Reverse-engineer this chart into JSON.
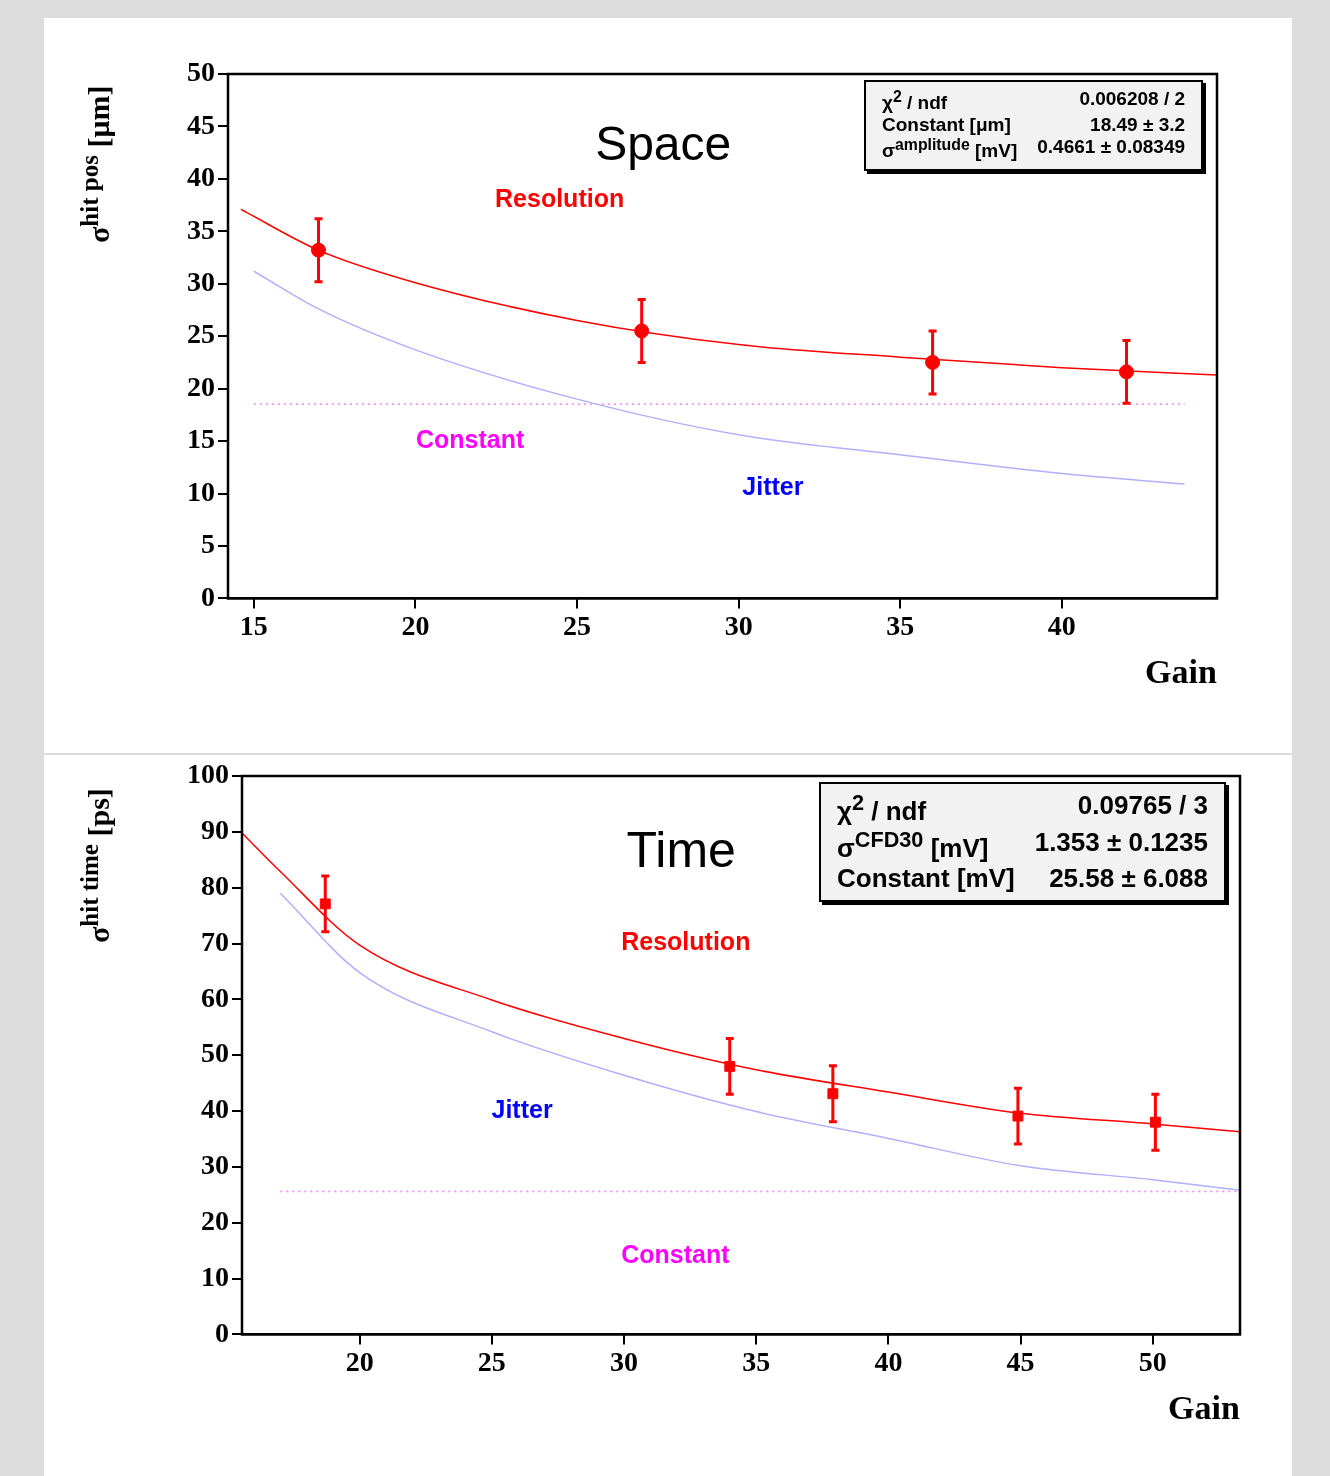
{
  "chart_data": [
    {
      "type": "scatter",
      "title": "Space",
      "xlabel": "Gain",
      "ylabel": "σ$^{hit pos}$ [μm]",
      "xlim": [
        14.2,
        44.8
      ],
      "xticks": [
        15,
        20,
        25,
        30,
        35,
        40
      ],
      "ylim": [
        0,
        50
      ],
      "yticks": [
        0,
        5,
        10,
        15,
        20,
        25,
        30,
        35,
        40,
        45,
        50
      ],
      "grid": false,
      "legend": false,
      "annotations": [
        "χ$^{2}$ / ndf",
        "0.006208 / 2",
        "Constant [μm]",
        "18.49 ±  3.2",
        "σ$^{amplitude}$ [mV]",
        "0.4661 ± 0.08349"
      ],
      "series": [
        {
          "type": "scatter",
          "color": "#ff0000",
          "marker": "circle",
          "x": [
            17,
            27,
            36,
            42
          ],
          "values": [
            33.2,
            25.5,
            22.5,
            21.6
          ],
          "errors": [
            3,
            3,
            3,
            3
          ]
        },
        {
          "type": "line",
          "name": "Resolution",
          "color": "#ff0000",
          "marker": "none",
          "x": [
            14.6,
            17,
            20,
            25,
            30,
            35,
            40,
            44.8
          ],
          "values": [
            37.1,
            33.2,
            30.1,
            26.5,
            24.2,
            23.0,
            22.0,
            21.3
          ]
        },
        {
          "type": "line",
          "name": "Jitter",
          "color": "#b0b0ff",
          "marker": "none",
          "x": [
            15,
            17,
            20,
            25,
            30,
            35,
            40,
            43.8
          ],
          "values": [
            31.2,
            27.6,
            23.7,
            19.0,
            15.6,
            13.7,
            11.9,
            10.9
          ]
        },
        {
          "type": "line",
          "name": "Constant",
          "color": "#ff80ff",
          "marker": "none",
          "line_style": "dotted",
          "x": [
            15,
            43.8
          ],
          "values": [
            18.5,
            18.5
          ]
        }
      ]
    },
    {
      "type": "scatter",
      "title": "Time",
      "xlabel": "Gain",
      "ylabel": "σ$^{hit time}$ [ps]",
      "xlim": [
        15.55,
        53.3
      ],
      "xticks": [
        20,
        25,
        30,
        35,
        40,
        45,
        50
      ],
      "ylim": [
        0,
        100
      ],
      "yticks": [
        0,
        10,
        20,
        30,
        40,
        50,
        60,
        70,
        80,
        90,
        100
      ],
      "grid": false,
      "legend": false,
      "annotations": [
        "χ$^{2}$ / ndf",
        "0.09765 / 3",
        "σ$^{CFD30}$ [mV]",
        "1.353 ± 0.1235",
        "Constant [mV]",
        "25.58 ± 6.088"
      ],
      "series": [
        {
          "type": "scatter",
          "color": "#ff0000",
          "marker": "square",
          "x": [
            18.7,
            34.0,
            37.9,
            44.9,
            50.1
          ],
          "values": [
            77.1,
            48.0,
            43.1,
            39.1,
            38.0
          ],
          "errors": [
            5,
            5,
            5,
            5,
            5
          ]
        },
        {
          "type": "line",
          "name": "Resolution",
          "color": "#ff0000",
          "marker": "none",
          "x": [
            15.55,
            17,
            20,
            25,
            30,
            35,
            40,
            45,
            50,
            53.3
          ],
          "values": [
            89.8,
            82.9,
            69.7,
            59.9,
            53.0,
            47.4,
            43.4,
            39.6,
            37.7,
            36.3
          ]
        },
        {
          "type": "line",
          "name": "Jitter",
          "color": "#b0b0ff",
          "marker": "none",
          "x": [
            17,
            20,
            25,
            30,
            35,
            40,
            45,
            50,
            53.3
          ],
          "values": [
            79.0,
            64.8,
            54.2,
            46.4,
            39.9,
            35.1,
            30.2,
            27.7,
            25.8
          ]
        },
        {
          "type": "line",
          "name": "Constant",
          "color": "#ff80ff",
          "marker": "none",
          "line_style": "dotted",
          "x": [
            17,
            53.3
          ],
          "values": [
            25.6,
            25.6
          ]
        }
      ]
    }
  ]
}
